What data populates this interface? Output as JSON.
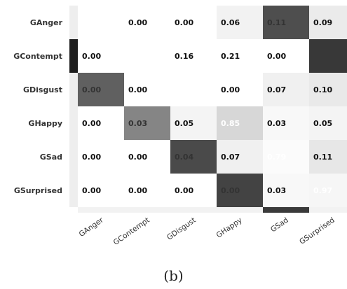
{
  "caption": "(b)",
  "chart_data": {
    "type": "heatmap",
    "rows": [
      "GAnger",
      "GContempt",
      "GDisgust",
      "GHappy",
      "GSad",
      "GSurprised"
    ],
    "columns": [
      "GAnger",
      "GContempt",
      "GDisgust",
      "GHappy",
      "GSad",
      "GSurprised"
    ],
    "cells": [
      {
        "row": "GAnger",
        "col": "GContempt",
        "label": "0.00",
        "shade": 0.0
      },
      {
        "row": "GAnger",
        "col": "GDisgust",
        "label": "0.00",
        "shade": 0.0
      },
      {
        "row": "GAnger",
        "col": "GHappy",
        "label": "0.06",
        "shade": 0.06
      },
      {
        "row": "GAnger",
        "col": "GSad",
        "label": "0.11",
        "shade": 0.8
      },
      {
        "row": "GAnger",
        "col": "GSurprised",
        "label": "0.09",
        "shade": 0.09
      },
      {
        "row": "GContempt",
        "col": "GAnger",
        "label": "0.00",
        "shade": 0.0
      },
      {
        "row": "GContempt",
        "col": "GDisgust",
        "label": "0.16",
        "shade": 0.0
      },
      {
        "row": "GContempt",
        "col": "GHappy",
        "label": "0.21",
        "shade": 0.0
      },
      {
        "row": "GContempt",
        "col": "GSad",
        "label": "0.00",
        "shade": 0.0
      },
      {
        "row": "GContempt",
        "col": "GSurprised",
        "label": "",
        "shade": 0.9
      },
      {
        "row": "GDisgust",
        "col": "GAnger",
        "label": "0.00",
        "shade": 0.72
      },
      {
        "row": "GDisgust",
        "col": "GContempt",
        "label": "0.00",
        "shade": 0.0
      },
      {
        "row": "GDisgust",
        "col": "GHappy",
        "label": "0.00",
        "shade": 0.0
      },
      {
        "row": "GDisgust",
        "col": "GSad",
        "label": "0.07",
        "shade": 0.07
      },
      {
        "row": "GDisgust",
        "col": "GSurprised",
        "label": "0.10",
        "shade": 0.1
      },
      {
        "row": "GHappy",
        "col": "GAnger",
        "label": "0.00",
        "shade": 0.0
      },
      {
        "row": "GHappy",
        "col": "GContempt",
        "label": "0.03",
        "shade": 0.55
      },
      {
        "row": "GHappy",
        "col": "GDisgust",
        "label": "0.05",
        "shade": 0.05
      },
      {
        "row": "GHappy",
        "col": "GHappy",
        "label": "0.85",
        "shade": 0.18
      },
      {
        "row": "GHappy",
        "col": "GSad",
        "label": "0.03",
        "shade": 0.03
      },
      {
        "row": "GHappy",
        "col": "GSurprised",
        "label": "0.05",
        "shade": 0.05
      },
      {
        "row": "GSad",
        "col": "GAnger",
        "label": "0.00",
        "shade": 0.0
      },
      {
        "row": "GSad",
        "col": "GContempt",
        "label": "0.00",
        "shade": 0.0
      },
      {
        "row": "GSad",
        "col": "GDisgust",
        "label": "0.04",
        "shade": 0.82
      },
      {
        "row": "GSad",
        "col": "GHappy",
        "label": "0.07",
        "shade": 0.07
      },
      {
        "row": "GSad",
        "col": "GSad",
        "label": "0.79",
        "shade": 0.02
      },
      {
        "row": "GSad",
        "col": "GSurprised",
        "label": "0.11",
        "shade": 0.11
      },
      {
        "row": "GSurprised",
        "col": "GAnger",
        "label": "0.00",
        "shade": 0.0
      },
      {
        "row": "GSurprised",
        "col": "GContempt",
        "label": "0.00",
        "shade": 0.0
      },
      {
        "row": "GSurprised",
        "col": "GDisgust",
        "label": "0.00",
        "shade": 0.0
      },
      {
        "row": "GSurprised",
        "col": "GHappy",
        "label": "0.00",
        "shade": 0.85
      },
      {
        "row": "GSurprised",
        "col": "GSad",
        "label": "0.03",
        "shade": 0.03
      },
      {
        "row": "GSurprised",
        "col": "GSurprised",
        "label": "0.97",
        "shade": 0.04
      }
    ],
    "colors": {
      "dark": "#222222",
      "light": "#ffffff",
      "text_dark": "#111111",
      "text_light": "#ffffff"
    }
  }
}
